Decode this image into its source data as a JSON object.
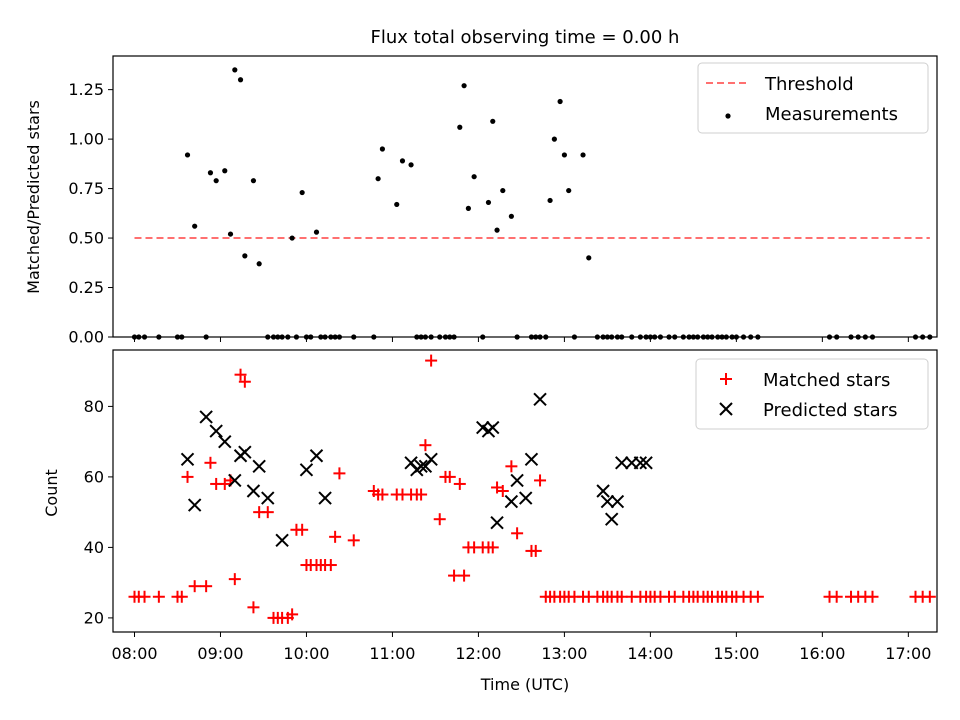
{
  "chart_data": [
    {
      "type": "scatter",
      "title": "Flux total observing time = 0.00 h",
      "ylabel": "Matched/Predicted stars",
      "xlabel": "",
      "ylim": [
        0,
        1.42
      ],
      "xlim": [
        "07:45",
        "17:20"
      ],
      "yticks": [
        0.0,
        0.25,
        0.5,
        0.75,
        1.0,
        1.25
      ],
      "ytick_labels": [
        "0.00",
        "0.25",
        "0.50",
        "0.75",
        "1.00",
        "1.25"
      ],
      "grid": false,
      "legend_position": "upper right",
      "threshold": {
        "name": "Threshold",
        "y": 0.5,
        "x_start": "08:00",
        "x_end": "17:15",
        "color": "#ff7070",
        "style": "dashed"
      },
      "series": [
        {
          "name": "Measurements",
          "marker": "dot",
          "color": "#000000",
          "x": [
            "08:00",
            "08:03",
            "08:07",
            "08:17",
            "08:30",
            "08:33",
            "08:37",
            "08:42",
            "08:50",
            "08:53",
            "08:57",
            "09:03",
            "09:07",
            "09:10",
            "09:14",
            "09:17",
            "09:23",
            "09:27",
            "09:33",
            "09:37",
            "09:40",
            "09:43",
            "09:47",
            "09:50",
            "09:53",
            "09:57",
            "10:00",
            "10:03",
            "10:07",
            "10:10",
            "10:13",
            "10:17",
            "10:20",
            "10:23",
            "10:33",
            "10:47",
            "10:50",
            "10:53",
            "11:03",
            "11:07",
            "11:13",
            "11:17",
            "11:20",
            "11:23",
            "11:27",
            "11:33",
            "11:37",
            "11:40",
            "11:43",
            "11:47",
            "11:50",
            "11:53",
            "11:57",
            "12:03",
            "12:07",
            "12:10",
            "12:13",
            "12:17",
            "12:23",
            "12:27",
            "12:37",
            "12:40",
            "12:43",
            "12:47",
            "12:50",
            "12:53",
            "12:57",
            "13:00",
            "13:03",
            "13:07",
            "13:13",
            "13:17",
            "13:23",
            "13:27",
            "13:30",
            "13:33",
            "13:37",
            "13:40",
            "13:47",
            "13:53",
            "13:57",
            "14:00",
            "14:03",
            "14:07",
            "14:13",
            "14:17",
            "14:23",
            "14:27",
            "14:30",
            "14:33",
            "14:37",
            "14:40",
            "14:43",
            "14:47",
            "14:50",
            "14:53",
            "14:57",
            "15:00",
            "15:05",
            "15:10",
            "15:15",
            "16:05",
            "16:10",
            "16:20",
            "16:25",
            "16:30",
            "16:35",
            "17:05",
            "17:10",
            "17:15"
          ],
          "y": [
            0.0,
            0.0,
            0.0,
            0.0,
            0.0,
            0.0,
            0.92,
            0.56,
            0.0,
            0.83,
            0.79,
            0.84,
            0.52,
            1.35,
            1.3,
            0.41,
            0.79,
            0.37,
            0.0,
            0.0,
            0.0,
            0.0,
            0.0,
            0.5,
            0.0,
            0.73,
            0.0,
            0.0,
            0.53,
            0.0,
            0.0,
            0.0,
            0.0,
            0.0,
            0.0,
            0.0,
            0.8,
            0.95,
            0.67,
            0.89,
            0.87,
            0.0,
            0.0,
            0.0,
            0.0,
            0.0,
            0.0,
            0.0,
            0.0,
            1.06,
            1.27,
            0.65,
            0.81,
            0.0,
            0.68,
            1.09,
            0.54,
            0.74,
            0.61,
            0.0,
            0.0,
            0.0,
            0.0,
            0.0,
            0.69,
            1.0,
            1.19,
            0.92,
            0.74,
            0.0,
            0.92,
            0.4,
            0.0,
            0.0,
            0.0,
            0.0,
            0.0,
            0.0,
            0.0,
            0.0,
            0.0,
            0.0,
            0.0,
            0.0,
            0.0,
            0.0,
            0.0,
            0.0,
            0.0,
            0.0,
            0.0,
            0.0,
            0.0,
            0.0,
            0.0,
            0.0,
            0.0,
            0.0,
            0.0,
            0.0,
            0.0,
            0.0,
            0.0,
            0.0,
            0.0,
            0.0,
            0.0,
            0.0,
            0.0,
            0.0
          ]
        }
      ]
    },
    {
      "type": "scatter",
      "title": "",
      "ylabel": "Count",
      "xlabel": "Time (UTC)",
      "ylim": [
        16,
        96
      ],
      "xlim": [
        "07:45",
        "17:20"
      ],
      "yticks": [
        20,
        40,
        60,
        80
      ],
      "xtick_labels": [
        "08:00",
        "09:00",
        "10:00",
        "11:00",
        "12:00",
        "13:00",
        "14:00",
        "15:00",
        "16:00",
        "17:00"
      ],
      "grid": false,
      "legend_position": "upper right",
      "series": [
        {
          "name": "Matched stars",
          "marker": "plus",
          "color": "#ff0000",
          "x": [
            "08:00",
            "08:03",
            "08:07",
            "08:17",
            "08:30",
            "08:33",
            "08:37",
            "08:42",
            "08:50",
            "08:53",
            "08:57",
            "09:03",
            "09:07",
            "09:10",
            "09:14",
            "09:17",
            "09:23",
            "09:27",
            "09:33",
            "09:37",
            "09:40",
            "09:43",
            "09:47",
            "09:50",
            "09:53",
            "09:57",
            "10:00",
            "10:03",
            "10:07",
            "10:10",
            "10:13",
            "10:17",
            "10:20",
            "10:23",
            "10:33",
            "10:47",
            "10:50",
            "10:53",
            "11:03",
            "11:07",
            "11:13",
            "11:17",
            "11:20",
            "11:23",
            "11:27",
            "11:33",
            "11:37",
            "11:40",
            "11:43",
            "11:47",
            "11:50",
            "11:53",
            "11:57",
            "12:03",
            "12:07",
            "12:10",
            "12:13",
            "12:17",
            "12:23",
            "12:27",
            "12:37",
            "12:40",
            "12:43",
            "12:47",
            "12:50",
            "12:53",
            "12:57",
            "13:00",
            "13:03",
            "13:07",
            "13:13",
            "13:17",
            "13:23",
            "13:27",
            "13:30",
            "13:33",
            "13:37",
            "13:40",
            "13:47",
            "13:53",
            "13:57",
            "14:00",
            "14:03",
            "14:07",
            "14:13",
            "14:17",
            "14:23",
            "14:27",
            "14:30",
            "14:33",
            "14:37",
            "14:40",
            "14:43",
            "14:47",
            "14:50",
            "14:53",
            "14:57",
            "15:00",
            "15:05",
            "15:10",
            "15:15",
            "16:05",
            "16:10",
            "16:20",
            "16:25",
            "16:30",
            "16:35",
            "17:05",
            "17:10",
            "17:15"
          ],
          "y": [
            26,
            26,
            26,
            26,
            26,
            26,
            60,
            29,
            29,
            64,
            58,
            58,
            59,
            31,
            89,
            87,
            23,
            50,
            50,
            20,
            20,
            20,
            20,
            21,
            45,
            45,
            35,
            35,
            35,
            35,
            35,
            35,
            43,
            61,
            42,
            56,
            55,
            55,
            55,
            55,
            55,
            55,
            55,
            69,
            93,
            48,
            60,
            60,
            32,
            58,
            32,
            40,
            40,
            40,
            40,
            40,
            57,
            56,
            63,
            44,
            39,
            39,
            59,
            26,
            26,
            26,
            26,
            26,
            26,
            26,
            26,
            26,
            26,
            26,
            26,
            26,
            26,
            26,
            26,
            26,
            26,
            26,
            26,
            26,
            26,
            26,
            26,
            26,
            26,
            26,
            26,
            26,
            26,
            26,
            26,
            26,
            26,
            26,
            26,
            26,
            26,
            26,
            26,
            26,
            26,
            26,
            26,
            26,
            26,
            26
          ]
        },
        {
          "name": "Predicted stars",
          "marker": "x",
          "color": "#000000",
          "x": [
            "08:37",
            "08:42",
            "08:50",
            "08:57",
            "09:03",
            "09:10",
            "09:14",
            "09:17",
            "09:23",
            "09:27",
            "09:33",
            "09:43",
            "10:00",
            "10:07",
            "10:13",
            "11:13",
            "11:17",
            "11:20",
            "11:23",
            "11:27",
            "12:03",
            "12:07",
            "12:10",
            "12:13",
            "12:23",
            "12:27",
            "12:33",
            "12:37",
            "12:43",
            "13:27",
            "13:30",
            "13:33",
            "13:37",
            "13:40",
            "13:47",
            "13:53",
            "13:57"
          ],
          "y": [
            65,
            52,
            77,
            73,
            70,
            59,
            66,
            67,
            56,
            63,
            54,
            42,
            62,
            66,
            54,
            64,
            62,
            63,
            63,
            65,
            74,
            73,
            74,
            47,
            53,
            59,
            54,
            65,
            82,
            56,
            53,
            48,
            53,
            64,
            64,
            64,
            64
          ]
        }
      ]
    }
  ]
}
